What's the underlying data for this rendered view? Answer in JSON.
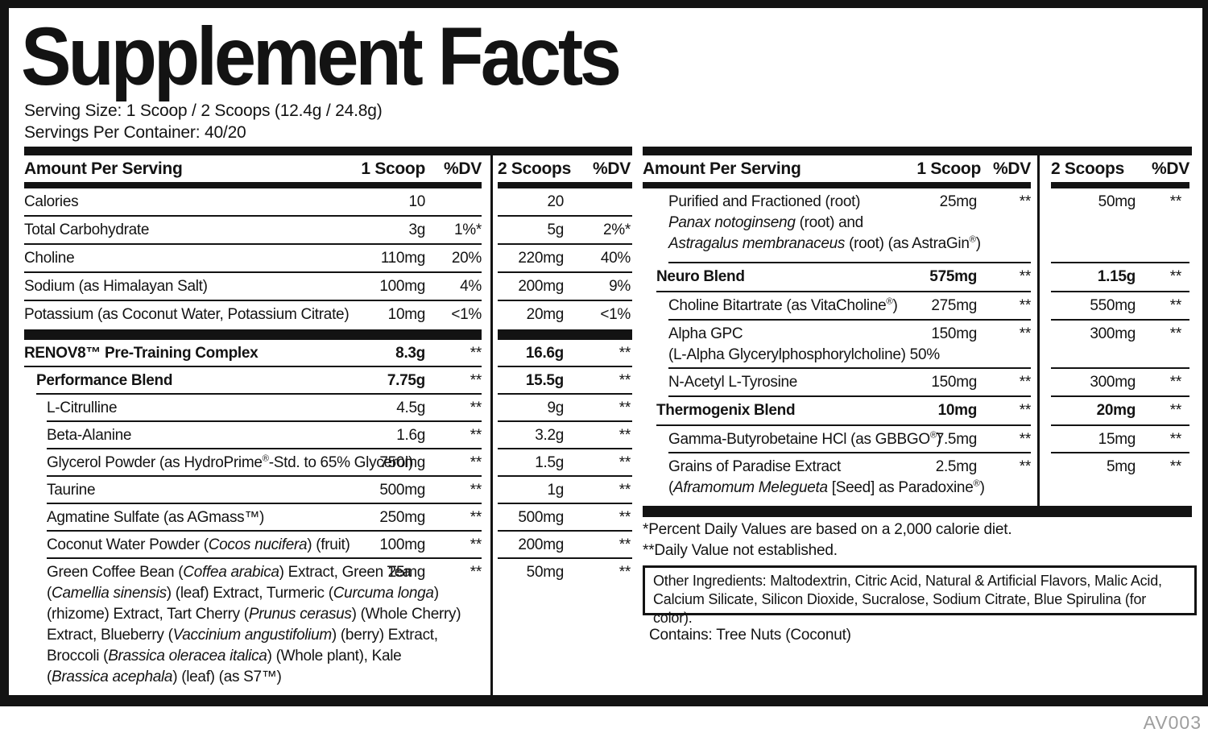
{
  "label": {
    "title": "Supplement Facts",
    "serving_size": "Serving Size: 1 Scoop / 2 Scoops (12.4g / 24.8g)",
    "servings_per_container": "Servings Per Container: 40/20",
    "footnote1": "*Percent Daily Values are based on a 2,000 calorie diet.",
    "footnote2": "**Daily Value not established.",
    "other_ingredients": "Other Ingredients: Maltodextrin, Citric Acid, Natural & Artificial Flavors, Malic Acid, Calcium Silicate, Silicon Dioxide, Sucralose, Sodium Citrate, Blue Spirulina (for color).",
    "contains": "Contains: Tree Nuts (Coconut)",
    "code": "AV003",
    "colors": {
      "ink": "#131313",
      "muted": "#9e9e9e"
    }
  },
  "tables": {
    "left": {
      "header": {
        "col1": "Amount Per Serving",
        "col2": "1 Scoop",
        "col3": "%DV"
      },
      "rows": [
        {
          "seg": [
            {
              "t": "Calories"
            }
          ],
          "amount": "10",
          "dv": ""
        },
        {
          "seg": [
            {
              "t": "Total Carbohydrate"
            }
          ],
          "amount": "3g",
          "dv": "1%*"
        },
        {
          "seg": [
            {
              "t": "Choline"
            }
          ],
          "amount": "110mg",
          "dv": "20%"
        },
        {
          "seg": [
            {
              "t": "Sodium (as Himalayan Salt)"
            }
          ],
          "amount": "100mg",
          "dv": "4%"
        },
        {
          "seg": [
            {
              "t": "Potassium (as Coconut Water, Potassium Citrate)"
            }
          ],
          "amount": "10mg",
          "dv": "<1%"
        },
        {
          "seg": [
            {
              "t": "RENOV8™ Pre-Training Complex"
            }
          ],
          "amount": "8.3g",
          "dv": "**",
          "b": 1,
          "ind": 0
        },
        {
          "seg": [
            {
              "t": "Performance Blend"
            }
          ],
          "amount": "7.75g",
          "dv": "**",
          "b": 1,
          "ind": 1
        },
        {
          "seg": [
            {
              "t": "L-Citrulline"
            }
          ],
          "amount": "4.5g",
          "dv": "**",
          "ind": 2
        },
        {
          "seg": [
            {
              "t": "Beta-Alanine"
            }
          ],
          "amount": "1.6g",
          "dv": "**",
          "ind": 2
        },
        {
          "seg": [
            {
              "t": "Glycerol Powder (as HydroPrime"
            },
            {
              "t": "®",
              "s": 1
            },
            {
              "t": "-Std. to 65% Glycerol)"
            }
          ],
          "amount": "750mg",
          "dv": "**",
          "ind": 2
        },
        {
          "seg": [
            {
              "t": "Taurine"
            }
          ],
          "amount": "500mg",
          "dv": "**",
          "ind": 2
        },
        {
          "seg": [
            {
              "t": "Agmatine Sulfate (as AGmass™)"
            }
          ],
          "amount": "250mg",
          "dv": "**",
          "ind": 2
        },
        {
          "seg": [
            {
              "t": "Coconut Water Powder ("
            },
            {
              "t": "Cocos nucifera",
              "i": 1
            },
            {
              "t": ") (fruit)"
            }
          ],
          "amount": "100mg",
          "dv": "**",
          "ind": 2
        },
        {
          "seg": [
            {
              "t": "Green Coffee Bean ("
            },
            {
              "t": "Coffea arabica",
              "i": 1
            },
            {
              "t": ") Extract, Green Tea\n("
            },
            {
              "t": "Camellia sinensis",
              "i": 1
            },
            {
              "t": ") (leaf) Extract, Turmeric ("
            },
            {
              "t": "Curcuma longa",
              "i": 1
            },
            {
              "t": ")\n(rhizome) Extract, Tart Cherry ("
            },
            {
              "t": "Prunus cerasus",
              "i": 1
            },
            {
              "t": ") (Whole Cherry)\nExtract, Blueberry ("
            },
            {
              "t": "Vaccinium angustifolium",
              "i": 1
            },
            {
              "t": ") (berry) Extract,\nBroccoli ("
            },
            {
              "t": "Brassica oleracea italica",
              "i": 1
            },
            {
              "t": ") (Whole plant), Kale\n("
            },
            {
              "t": "Brassica acephala",
              "i": 1
            },
            {
              "t": ") (leaf) (as S7™)"
            }
          ],
          "amount": "25mg",
          "dv": "**",
          "ind": 2
        }
      ]
    },
    "mid": {
      "header": {
        "col2": "2 Scoops",
        "col3": "%DV"
      },
      "rows": [
        {
          "amount": "20",
          "dv": ""
        },
        {
          "amount": "5g",
          "dv": "2%*"
        },
        {
          "amount": "220mg",
          "dv": "40%"
        },
        {
          "amount": "200mg",
          "dv": "9%"
        },
        {
          "amount": "20mg",
          "dv": "<1%"
        },
        {
          "amount": "16.6g",
          "dv": "**",
          "b": 1
        },
        {
          "amount": "15.5g",
          "dv": "**",
          "b": 1
        },
        {
          "amount": "9g",
          "dv": "**"
        },
        {
          "amount": "3.2g",
          "dv": "**"
        },
        {
          "amount": "1.5g",
          "dv": "**"
        },
        {
          "amount": "1g",
          "dv": "**"
        },
        {
          "amount": "500mg",
          "dv": "**"
        },
        {
          "amount": "200mg",
          "dv": "**"
        },
        {
          "amount": "50mg",
          "dv": "**"
        }
      ]
    },
    "right": {
      "header": {
        "col1": "Amount Per Serving",
        "col2": "1 Scoop",
        "col3": "%DV"
      },
      "rows": [
        {
          "seg": [
            {
              "t": "Purified and Fractioned (root)\n"
            },
            {
              "t": "Panax notoginseng",
              "i": 1
            },
            {
              "t": " (root) and\n"
            },
            {
              "t": "Astragalus membranaceus",
              "i": 1
            },
            {
              "t": " (root) (as AstraGin"
            },
            {
              "t": "®",
              "s": 1
            },
            {
              "t": ")"
            }
          ],
          "amount": "25mg",
          "dv": "**",
          "ind": 2
        },
        {
          "seg": [
            {
              "t": "Neuro Blend"
            }
          ],
          "amount": "575mg",
          "dv": "**",
          "b": 1,
          "ind": 1
        },
        {
          "seg": [
            {
              "t": "Choline Bitartrate (as VitaCholine"
            },
            {
              "t": "®",
              "s": 1
            },
            {
              "t": ")"
            }
          ],
          "amount": "275mg",
          "dv": "**",
          "ind": 2
        },
        {
          "seg": [
            {
              "t": "Alpha GPC\n(L-Alpha Glycerylphosphorylcholine) 50%"
            }
          ],
          "amount": "150mg",
          "dv": "**",
          "ind": 2
        },
        {
          "seg": [
            {
              "t": "N-Acetyl L-Tyrosine"
            }
          ],
          "amount": "150mg",
          "dv": "**",
          "ind": 2
        },
        {
          "seg": [
            {
              "t": "Thermogenix Blend"
            }
          ],
          "amount": "10mg",
          "dv": "**",
          "b": 1,
          "ind": 1
        },
        {
          "seg": [
            {
              "t": "Gamma-Butyrobetaine HCl (as GBBGO"
            },
            {
              "t": "®",
              "s": 1
            },
            {
              "t": ")"
            }
          ],
          "amount": "7.5mg",
          "dv": "**",
          "ind": 2
        },
        {
          "seg": [
            {
              "t": "Grains of Paradise Extract\n("
            },
            {
              "t": "Aframomum Melegueta",
              "i": 1
            },
            {
              "t": " [Seed] as Paradoxine"
            },
            {
              "t": "®",
              "s": 1
            },
            {
              "t": ")"
            }
          ],
          "amount": "2.5mg",
          "dv": "**",
          "ind": 2
        }
      ]
    },
    "far": {
      "header": {
        "col2": "2 Scoops",
        "col3": "%DV"
      },
      "rows": [
        {
          "amount": "50mg",
          "dv": "**"
        },
        {
          "amount": "1.15g",
          "dv": "**",
          "b": 1
        },
        {
          "amount": "550mg",
          "dv": "**"
        },
        {
          "amount": "300mg",
          "dv": "**"
        },
        {
          "amount": "300mg",
          "dv": "**"
        },
        {
          "amount": "20mg",
          "dv": "**",
          "b": 1
        },
        {
          "amount": "15mg",
          "dv": "**"
        },
        {
          "amount": "5mg",
          "dv": "**"
        }
      ]
    }
  }
}
